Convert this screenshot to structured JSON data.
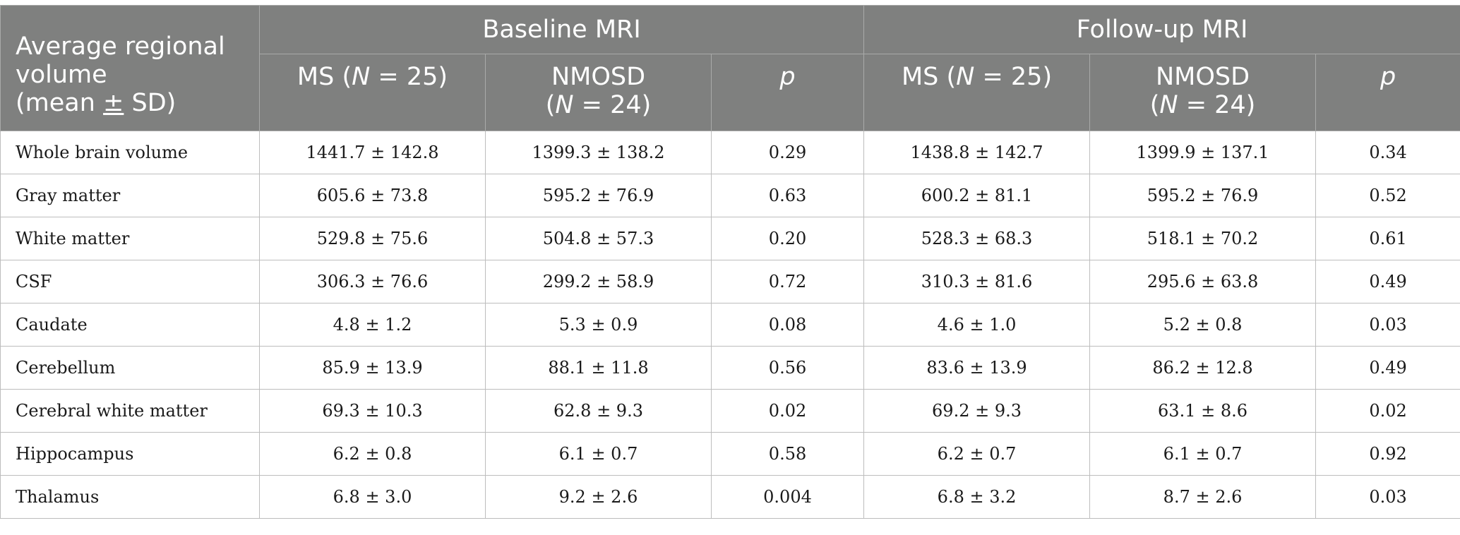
{
  "header": {
    "corner_lines": [
      "Average regional",
      "volume",
      "(mean ",
      "±",
      " SD)"
    ],
    "group_baseline": "Baseline MRI",
    "group_followup": "Follow-up MRI",
    "ms_prefix": "MS (",
    "ms_n": "N",
    "ms_suffix": " = 25)",
    "nmosd_line1": "NMOSD",
    "nmosd_prefix": "(",
    "nmosd_n": "N",
    "nmosd_suffix": " = 24)",
    "p_label": "p"
  },
  "rows": [
    {
      "label": "Whole brain volume",
      "cells": [
        "1441.7 ± 142.8",
        "1399.3 ± 138.2",
        "0.29",
        "1438.8 ± 142.7",
        "1399.9 ± 137.1",
        "0.34"
      ]
    },
    {
      "label": "Gray matter",
      "cells": [
        "605.6 ± 73.8",
        "595.2 ± 76.9",
        "0.63",
        "600.2 ± 81.1",
        "595.2 ± 76.9",
        "0.52"
      ]
    },
    {
      "label": "White matter",
      "cells": [
        "529.8 ± 75.6",
        "504.8 ± 57.3",
        "0.20",
        "528.3 ± 68.3",
        "518.1 ± 70.2",
        "0.61"
      ]
    },
    {
      "label": "CSF",
      "cells": [
        "306.3 ± 76.6",
        "299.2 ± 58.9",
        "0.72",
        "310.3 ± 81.6",
        "295.6 ± 63.8",
        "0.49"
      ]
    },
    {
      "label": "Caudate",
      "cells": [
        "4.8 ± 1.2",
        "5.3 ± 0.9",
        "0.08",
        "4.6 ± 1.0",
        "5.2 ± 0.8",
        "0.03"
      ]
    },
    {
      "label": "Cerebellum",
      "cells": [
        "85.9 ± 13.9",
        "88.1 ± 11.8",
        "0.56",
        "83.6 ± 13.9",
        "86.2 ± 12.8",
        "0.49"
      ]
    },
    {
      "label": "Cerebral white matter",
      "cells": [
        "69.3 ± 10.3",
        "62.8 ± 9.3",
        "0.02",
        "69.2 ± 9.3",
        "63.1 ± 8.6",
        "0.02"
      ]
    },
    {
      "label": "Hippocampus",
      "cells": [
        "6.2 ± 0.8",
        "6.1 ± 0.7",
        "0.58",
        "6.2 ± 0.7",
        "6.1 ± 0.7",
        "0.92"
      ]
    },
    {
      "label": "Thalamus",
      "cells": [
        "6.8 ± 3.0",
        "9.2 ± 2.6",
        "0.004",
        "6.8 ± 3.2",
        "8.7 ± 2.6",
        "0.03"
      ]
    }
  ],
  "colors": {
    "header_bg": "#7f807f",
    "header_text": "#ffffff",
    "grid_line": "#bdbdbd"
  }
}
